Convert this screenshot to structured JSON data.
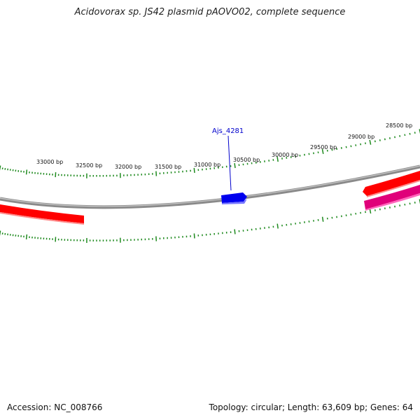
{
  "title": "Acidovorax sp. JS42 plasmid pAOVO02, complete sequence",
  "accession": "Accession: NC_008766",
  "summary": "Topology: circular; Length: 63,609 bp; Genes: 64",
  "colors": {
    "backbone": "#8a8a8a",
    "ticks": "#1e8a1e",
    "gene_red": "#ff0000",
    "gene_magenta": "#e0007a",
    "gene_blue": "#0000ee",
    "label_blue": "#0000cc"
  },
  "ticks": [
    {
      "label": "33000 bp"
    },
    {
      "label": "32500 bp"
    },
    {
      "label": "32000 bp"
    },
    {
      "label": "31500 bp"
    },
    {
      "label": "31000 bp"
    },
    {
      "label": "30500 bp"
    },
    {
      "label": "30000 bp"
    },
    {
      "label": "29500 bp"
    },
    {
      "label": "29000 bp"
    },
    {
      "label": "28500 bp"
    }
  ],
  "genes": [
    {
      "name": "Ajs_4281",
      "color": "blue"
    }
  ]
}
